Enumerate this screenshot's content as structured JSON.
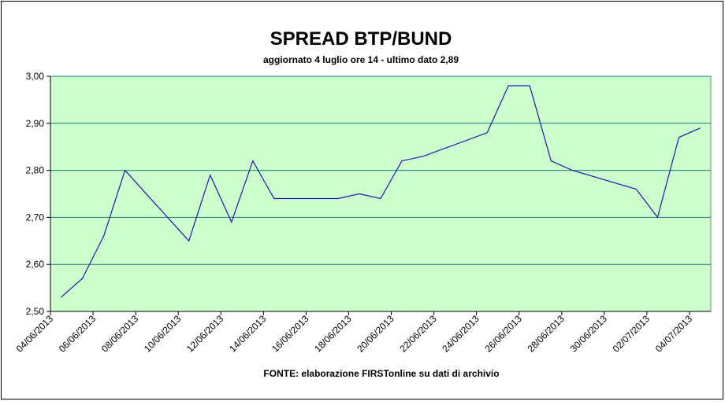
{
  "chart_data": {
    "type": "line",
    "title": "SPREAD BTP/BUND",
    "subtitle": "aggiornato 4 luglio ore 14 - ultimo dato 2,89",
    "source": "FONTE: elaborazione FIRSTonline su dati di archivio",
    "x": [
      "2013-06-04",
      "2013-06-05",
      "2013-06-06",
      "2013-06-07",
      "2013-06-10",
      "2013-06-11",
      "2013-06-12",
      "2013-06-13",
      "2013-06-14",
      "2013-06-17",
      "2013-06-18",
      "2013-06-19",
      "2013-06-20",
      "2013-06-21",
      "2013-06-24",
      "2013-06-25",
      "2013-06-26",
      "2013-06-27",
      "2013-06-28",
      "2013-07-01",
      "2013-07-02",
      "2013-07-03",
      "2013-07-04"
    ],
    "series": [
      {
        "name": "Spread",
        "color": "#1a1aa6",
        "values": [
          2.53,
          2.57,
          2.66,
          2.8,
          2.65,
          2.79,
          2.69,
          2.82,
          2.74,
          2.74,
          2.75,
          2.74,
          2.82,
          2.83,
          2.88,
          2.98,
          2.98,
          2.82,
          2.8,
          2.76,
          2.7,
          2.87,
          2.89
        ]
      }
    ],
    "xlim": [
      "2013-06-04",
      "2013-07-04"
    ],
    "xticks": [
      {
        "value": "2013-06-04",
        "label": "04/06/2013"
      },
      {
        "value": "2013-06-06",
        "label": "06/06/2013"
      },
      {
        "value": "2013-06-08",
        "label": "08/06/2013"
      },
      {
        "value": "2013-06-10",
        "label": "10/06/2013"
      },
      {
        "value": "2013-06-12",
        "label": "12/06/2013"
      },
      {
        "value": "2013-06-14",
        "label": "14/06/2013"
      },
      {
        "value": "2013-06-16",
        "label": "16/06/2013"
      },
      {
        "value": "2013-06-18",
        "label": "18/06/2013"
      },
      {
        "value": "2013-06-20",
        "label": "20/06/2013"
      },
      {
        "value": "2013-06-22",
        "label": "22/06/2013"
      },
      {
        "value": "2013-06-24",
        "label": "24/06/2013"
      },
      {
        "value": "2013-06-26",
        "label": "26/06/2013"
      },
      {
        "value": "2013-06-28",
        "label": "28/06/2013"
      },
      {
        "value": "2013-06-30",
        "label": "30/06/2013"
      },
      {
        "value": "2013-07-02",
        "label": "02/07/2013"
      },
      {
        "value": "2013-07-04",
        "label": "04/07/2013"
      }
    ],
    "ylim": [
      2.5,
      3.0
    ],
    "yticks": [
      {
        "value": 2.5,
        "label": "2,50"
      },
      {
        "value": 2.6,
        "label": "2,60"
      },
      {
        "value": 2.7,
        "label": "2,70"
      },
      {
        "value": 2.8,
        "label": "2,80"
      },
      {
        "value": 2.9,
        "label": "2,90"
      },
      {
        "value": 3.0,
        "label": "3,00"
      }
    ],
    "grid": true,
    "plot_background": "#ccffcc",
    "grid_color": "#1f7a7a"
  }
}
